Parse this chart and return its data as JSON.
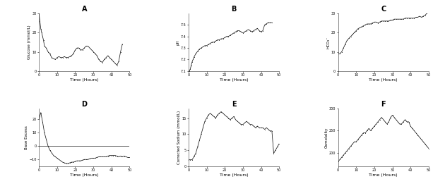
{
  "title_A": "A",
  "title_B": "B",
  "title_C": "C",
  "title_D": "D",
  "title_E": "E",
  "title_F": "F",
  "xlabel": "Time (Hours)",
  "ylabel_A": "Glucose (mmol/L)",
  "ylabel_B": "pH",
  "ylabel_C": "HCO₃⁻",
  "ylabel_D": "Base Excess",
  "ylabel_E": "Corrected Sodium (mmol/L)",
  "ylabel_F": "Osmolality",
  "background_color": "#ffffff",
  "line_color": "#1a1a1a",
  "A_x": [
    0,
    0.5,
    1,
    1.5,
    2,
    2.5,
    3,
    4,
    5,
    6,
    7,
    8,
    9,
    10,
    11,
    12,
    13,
    14,
    15,
    16,
    17,
    18,
    19,
    20,
    21,
    22,
    23,
    24,
    25,
    26,
    27,
    28,
    29,
    30,
    31,
    32,
    33,
    34,
    35,
    36,
    37,
    38,
    39,
    40,
    41,
    42,
    43,
    44,
    45,
    46
  ],
  "A_y": [
    30,
    26,
    22,
    20,
    18,
    16,
    13,
    12,
    10,
    9,
    7,
    6.5,
    6,
    7,
    7.5,
    7,
    7,
    7.5,
    7,
    7,
    7.5,
    8,
    9,
    11,
    12,
    12,
    11,
    11,
    12,
    13,
    13,
    12,
    11,
    10,
    9,
    8,
    6,
    5,
    4.5,
    6,
    7,
    8,
    7,
    6,
    5,
    4,
    3,
    5,
    10,
    14
  ],
  "B_x": [
    0,
    0.5,
    1,
    1.5,
    2,
    2.5,
    3,
    4,
    5,
    6,
    7,
    8,
    9,
    10,
    11,
    12,
    13,
    14,
    15,
    16,
    17,
    18,
    19,
    20,
    21,
    22,
    23,
    24,
    25,
    26,
    27,
    28,
    29,
    30,
    31,
    32,
    33,
    34,
    35,
    36,
    37,
    38,
    39,
    40,
    41,
    42,
    43,
    44,
    45,
    46
  ],
  "B_y": [
    7.1,
    7.1,
    7.12,
    7.15,
    7.18,
    7.2,
    7.22,
    7.25,
    7.27,
    7.29,
    7.3,
    7.31,
    7.32,
    7.32,
    7.33,
    7.34,
    7.35,
    7.35,
    7.36,
    7.37,
    7.37,
    7.38,
    7.38,
    7.39,
    7.4,
    7.4,
    7.41,
    7.42,
    7.43,
    7.44,
    7.45,
    7.45,
    7.44,
    7.43,
    7.44,
    7.45,
    7.46,
    7.45,
    7.44,
    7.45,
    7.46,
    7.47,
    7.45,
    7.44,
    7.45,
    7.5,
    7.51,
    7.52,
    7.52,
    7.52
  ],
  "C_x": [
    0,
    1,
    2,
    3,
    4,
    5,
    6,
    7,
    8,
    9,
    10,
    11,
    12,
    13,
    14,
    15,
    16,
    17,
    18,
    19,
    20,
    21,
    22,
    23,
    24,
    25,
    26,
    27,
    28,
    29,
    30,
    31,
    32,
    33,
    34,
    35,
    36,
    37,
    38,
    39,
    40,
    41,
    42,
    43,
    44,
    45,
    46,
    47,
    48,
    49,
    50
  ],
  "C_y": [
    9,
    9,
    10,
    12,
    14,
    16,
    17,
    18,
    19,
    20,
    21,
    22,
    22.5,
    23,
    23.5,
    24,
    24.5,
    24.5,
    24.5,
    25,
    25.5,
    25.5,
    25,
    25.5,
    26,
    26,
    26,
    26,
    26,
    26.5,
    26.5,
    27,
    27,
    27,
    27,
    27,
    27,
    27.5,
    27.5,
    27.5,
    27.5,
    27.5,
    27.5,
    28,
    28,
    28.5,
    28,
    28.5,
    29,
    30,
    31
  ],
  "D_x": [
    0,
    1,
    2,
    3,
    4,
    5,
    6,
    7,
    8,
    9,
    10,
    11,
    12,
    13,
    14,
    15,
    16,
    17,
    18,
    19,
    20,
    21,
    22,
    23,
    24,
    25,
    26,
    27,
    28,
    29,
    30,
    31,
    32,
    33,
    34,
    35,
    36,
    37,
    38,
    39,
    40,
    41,
    42,
    43,
    44,
    45,
    46,
    47,
    48,
    49,
    50
  ],
  "D_y": [
    20,
    25,
    18,
    10,
    5,
    0,
    -3,
    -5,
    -7,
    -8,
    -9,
    -10,
    -11,
    -12,
    -12.5,
    -13,
    -13,
    -12.5,
    -12,
    -12,
    -11.5,
    -11,
    -11,
    -11,
    -10.5,
    -10,
    -10,
    -10,
    -9.5,
    -9,
    -9,
    -9,
    -8.5,
    -8,
    -8,
    -8,
    -8,
    -8,
    -7.5,
    -7,
    -7,
    -7,
    -7,
    -7.5,
    -8,
    -7.5,
    -8,
    -7.5,
    -8,
    -8.5,
    -8.5
  ],
  "E_x": [
    0,
    1,
    2,
    3,
    4,
    5,
    6,
    7,
    8,
    9,
    10,
    11,
    12,
    13,
    14,
    15,
    16,
    17,
    18,
    19,
    20,
    21,
    22,
    23,
    24,
    25,
    26,
    27,
    28,
    29,
    30,
    31,
    32,
    33,
    34,
    35,
    36,
    37,
    38,
    39,
    40,
    41,
    42,
    43,
    44,
    45,
    46,
    47,
    48,
    49,
    50
  ],
  "E_y": [
    2,
    2,
    2,
    3,
    4,
    6,
    8,
    10,
    12,
    14,
    15,
    16,
    16.5,
    16,
    15.5,
    15,
    16,
    16.5,
    17,
    16.5,
    16,
    15.5,
    15,
    14.5,
    15,
    15.5,
    14.5,
    14,
    13.5,
    13,
    13,
    13.5,
    14,
    13.5,
    13,
    13,
    12.5,
    12,
    12.5,
    12,
    12,
    12,
    11.5,
    12,
    11.5,
    11,
    11,
    4,
    5,
    6,
    7
  ],
  "F_x": [
    0,
    1,
    2,
    3,
    4,
    5,
    6,
    7,
    8,
    9,
    10,
    11,
    12,
    13,
    14,
    15,
    16,
    17,
    18,
    19,
    20,
    21,
    22,
    23,
    24,
    25,
    26,
    27,
    28,
    29,
    30,
    31,
    32,
    33,
    34,
    35,
    36,
    37,
    38,
    39,
    40,
    41,
    42,
    43,
    44,
    45,
    46,
    47,
    48,
    49,
    50
  ],
  "F_y": [
    180,
    185,
    190,
    195,
    200,
    205,
    210,
    215,
    220,
    225,
    225,
    230,
    235,
    240,
    245,
    245,
    250,
    255,
    250,
    255,
    260,
    265,
    270,
    275,
    280,
    275,
    270,
    265,
    270,
    280,
    285,
    280,
    275,
    270,
    265,
    265,
    270,
    275,
    270,
    270,
    260,
    255,
    250,
    245,
    240,
    235,
    230,
    225,
    220,
    215,
    210
  ],
  "A_ylim": [
    0,
    30
  ],
  "B_ylim": [
    7.1,
    7.6
  ],
  "C_ylim": [
    0,
    30
  ],
  "D_ylim": [
    -15,
    28
  ],
  "E_ylim": [
    0,
    18
  ],
  "F_ylim": [
    170,
    300
  ],
  "xlim": [
    0,
    50
  ],
  "A_yticks": [
    0,
    10,
    20,
    30
  ],
  "B_yticks": [
    7.1,
    7.2,
    7.3,
    7.4,
    7.5
  ],
  "C_yticks": [
    0,
    10,
    20,
    30
  ],
  "D_yticks": [
    -10,
    0,
    10,
    20
  ],
  "E_yticks": [
    0,
    5,
    10,
    15
  ],
  "F_yticks": [
    200,
    250,
    300
  ],
  "xticks": [
    0,
    10,
    20,
    30,
    40,
    50
  ]
}
